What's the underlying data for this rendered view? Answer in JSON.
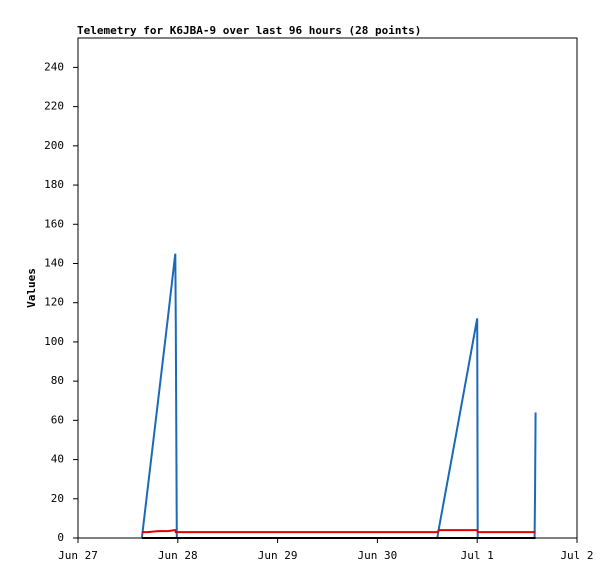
{
  "chart_data": {
    "type": "line",
    "title": "Telemetry for K6JBA-9 over last 96 hours (28 points)",
    "y_label": "Values",
    "x": [
      0.64,
      0.7,
      0.8,
      0.9,
      0.97,
      0.975,
      0.98,
      0.99,
      1.5,
      2.0,
      2.5,
      3.0,
      3.3,
      3.6,
      3.62,
      3.8,
      3.9,
      4.0,
      4.005,
      4.01,
      4.1,
      4.2,
      4.4,
      4.5,
      4.57,
      4.575,
      4.58,
      4.585
    ],
    "series": [
      {
        "color": "#1a6ab8",
        "values": [
          0,
          26,
          69,
          112,
          143,
          145,
          108,
          0,
          0,
          0,
          0,
          0,
          0,
          0,
          6,
          56,
          84,
          112,
          0,
          0,
          0,
          0,
          0,
          0,
          0,
          0,
          25,
          64
        ]
      },
      {
        "color": "#e00000",
        "values": [
          3,
          3,
          3.5,
          3.5,
          4,
          4,
          3,
          3,
          3,
          3,
          3,
          3,
          3,
          3,
          4,
          4,
          4,
          4,
          3,
          3,
          3,
          3,
          3,
          3,
          3,
          3,
          3,
          3
        ]
      },
      {
        "color": "#000000",
        "values": [
          0,
          0,
          0,
          0,
          0,
          0,
          0,
          0,
          0,
          0,
          0,
          0,
          0,
          0,
          0,
          0,
          0,
          0,
          0,
          0,
          0,
          0,
          0,
          0,
          0,
          0,
          0,
          0
        ]
      }
    ],
    "xlim": [
      0,
      5
    ],
    "xticks": [
      {
        "value": 0,
        "label": "Jun 27"
      },
      {
        "value": 1,
        "label": "Jun 28"
      },
      {
        "value": 2,
        "label": "Jun 29"
      },
      {
        "value": 3,
        "label": "Jun 30"
      },
      {
        "value": 4,
        "label": "Jul 1"
      },
      {
        "value": 5,
        "label": "Jul 2"
      }
    ],
    "ylim": [
      0,
      255
    ],
    "yticks": [
      0,
      20,
      40,
      60,
      80,
      100,
      120,
      140,
      160,
      180,
      200,
      220,
      240
    ],
    "grid": false
  }
}
